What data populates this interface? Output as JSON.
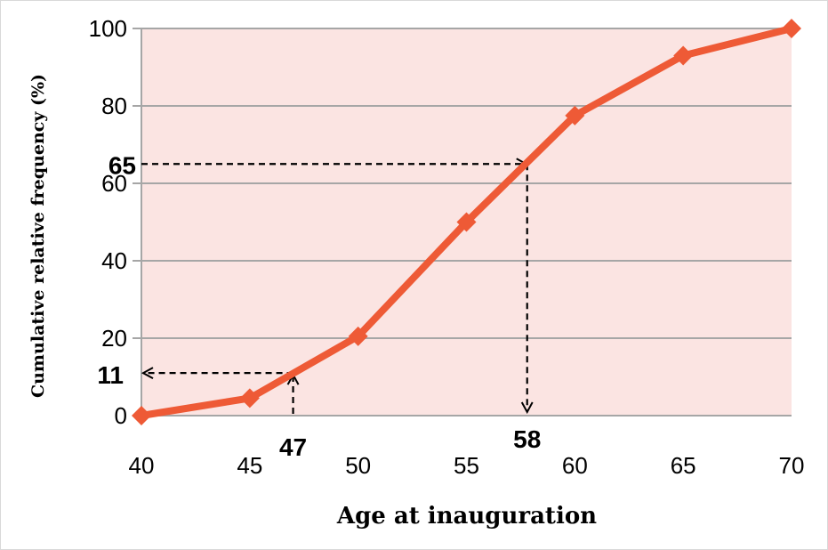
{
  "chart_data": {
    "type": "line",
    "xlabel": "Age at inauguration",
    "ylabel": "Cumulative relative frequency (%)",
    "xlim": [
      40,
      70
    ],
    "ylim": [
      0,
      100
    ],
    "x_ticks": [
      "40",
      "45",
      "50",
      "55",
      "60",
      "65",
      "70"
    ],
    "y_ticks": [
      "0",
      "20",
      "40",
      "60",
      "80",
      "100"
    ],
    "grid": "horizontal",
    "series": [
      {
        "x": [
          40,
          45,
          50,
          55,
          60,
          65,
          70
        ],
        "y": [
          0,
          4.5,
          20.5,
          50,
          77.5,
          93,
          100
        ]
      }
    ],
    "annotations": [
      {
        "label": "47",
        "x": 47,
        "y": 11,
        "direction": "up"
      },
      {
        "label": "11",
        "x": 40,
        "y": 11,
        "direction": "left"
      },
      {
        "label": "65",
        "x": 57.8,
        "y": 65,
        "direction": "right"
      },
      {
        "label": "58",
        "x": 57.8,
        "y": 0,
        "direction": "down"
      }
    ],
    "colors": {
      "line": "#ee5a36",
      "plot_background": "#fbe4e2",
      "grid": "#a6a6a6",
      "annotation": "#000000"
    }
  }
}
